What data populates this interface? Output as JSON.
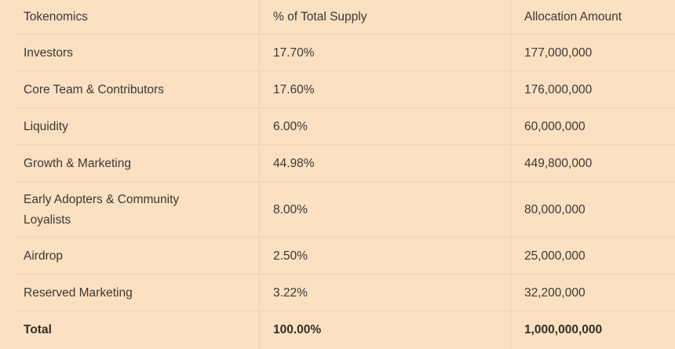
{
  "table": {
    "columns": [
      {
        "label": "Tokenomics"
      },
      {
        "label": "% of Total Supply"
      },
      {
        "label": "Allocation Amount"
      }
    ],
    "rows": [
      {
        "name": "Investors",
        "percent": "17.70%",
        "amount": "177,000,000"
      },
      {
        "name": "Core Team & Contributors",
        "percent": "17.60%",
        "amount": "176,000,000"
      },
      {
        "name": "Liquidity",
        "percent": "6.00%",
        "amount": "60,000,000"
      },
      {
        "name": "Growth & Marketing",
        "percent": "44.98%",
        "amount": "449,800,000"
      },
      {
        "name": "Early Adopters & Community Loyalists",
        "percent": "8.00%",
        "amount": "80,000,000"
      },
      {
        "name": "Airdrop",
        "percent": "2.50%",
        "amount": "25,000,000"
      },
      {
        "name": "Reserved Marketing",
        "percent": "3.22%",
        "amount": "32,200,000"
      }
    ],
    "total": {
      "name": "Total",
      "percent": "100.00%",
      "amount": "1,000,000,000"
    }
  },
  "colors": {
    "background": "#fbe0c2",
    "divider": "#e7d3b6",
    "text": "#3d3831",
    "total_text": "#332f29"
  },
  "chart_data": {
    "type": "table",
    "title": "Tokenomics",
    "columns": [
      "Tokenomics",
      "% of Total Supply",
      "Allocation Amount"
    ],
    "categories": [
      "Investors",
      "Core Team & Contributors",
      "Liquidity",
      "Growth & Marketing",
      "Early Adopters & Community Loyalists",
      "Airdrop",
      "Reserved Marketing"
    ],
    "series": [
      {
        "name": "% of Total Supply",
        "values": [
          17.7,
          17.6,
          6.0,
          44.98,
          8.0,
          2.5,
          3.22
        ]
      },
      {
        "name": "Allocation Amount",
        "values": [
          177000000,
          176000000,
          60000000,
          449800000,
          80000000,
          25000000,
          32200000
        ]
      }
    ],
    "total": {
      "percent": 100.0,
      "amount": 1000000000
    },
    "layout": {
      "grid": "row-and-column-dividers",
      "header_row": true,
      "total_row_bold": true
    }
  }
}
